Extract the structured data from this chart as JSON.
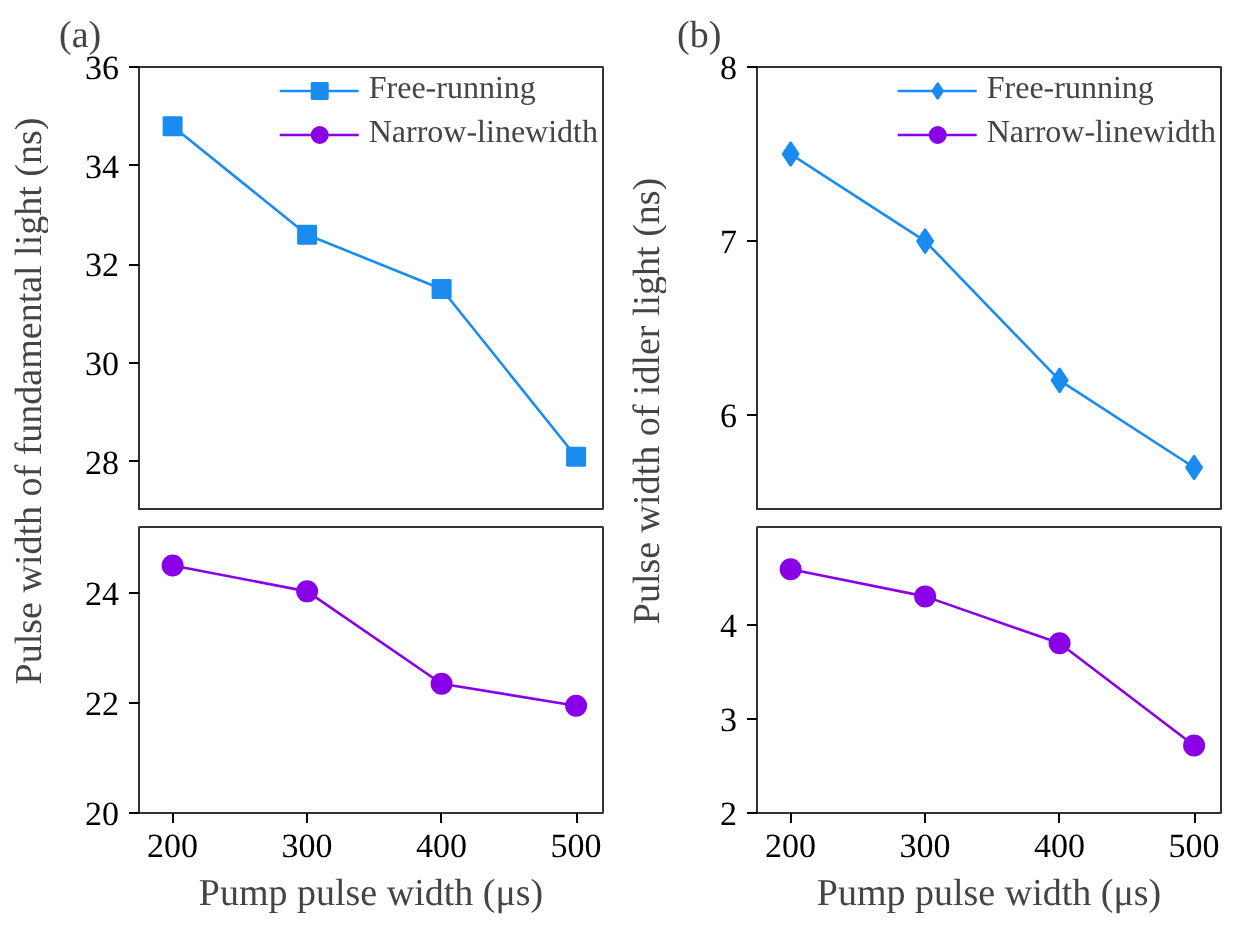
{
  "chart_data": [
    {
      "type": "line",
      "title": "(a)",
      "ylabel": "Pulse width of fundamental light (ns)",
      "x": [
        200,
        300,
        400,
        500
      ],
      "xlim": [
        175,
        520
      ],
      "xticks": [
        200,
        300,
        400,
        500
      ],
      "ylim": [
        27,
        36
      ],
      "yticks": [
        28,
        30,
        32,
        34,
        36
      ],
      "tick_labels": "y",
      "legend": "top right",
      "grid": false,
      "series": [
        {
          "name": "Free-running",
          "color": "#1a8cf0",
          "marker": "square",
          "values": [
            34.8,
            32.6,
            31.5,
            28.1
          ]
        }
      ]
    },
    {
      "type": "line",
      "xlabel": "Pump pulse width (μs)",
      "x": [
        200,
        300,
        400,
        500
      ],
      "xlim": [
        175,
        520
      ],
      "xticks": [
        200,
        300,
        400,
        500
      ],
      "ylim": [
        20,
        25.2
      ],
      "yticks": [
        20,
        22,
        24
      ],
      "grid": false,
      "series": [
        {
          "name": "Narrow-linewidth",
          "color": "#8a00e6",
          "marker": "circle",
          "values": [
            24.5,
            24.03,
            22.35,
            21.95
          ]
        }
      ]
    },
    {
      "type": "line",
      "title": "(b)",
      "ylabel": "Pulse width of idler light (ns)",
      "x": [
        200,
        300,
        400,
        500
      ],
      "xlim": [
        175,
        520
      ],
      "xticks": [
        200,
        300,
        400,
        500
      ],
      "ylim": [
        5.45,
        8
      ],
      "yticks": [
        6,
        7,
        8
      ],
      "tick_labels": "y",
      "legend": "top right",
      "grid": false,
      "series": [
        {
          "name": "Free-running",
          "color": "#1a8cf0",
          "marker": "diamond",
          "values": [
            7.5,
            7.0,
            6.2,
            5.7
          ]
        }
      ]
    },
    {
      "type": "line",
      "xlabel": "Pump pulse width (μs)",
      "x": [
        200,
        300,
        400,
        500
      ],
      "xlim": [
        175,
        520
      ],
      "xticks": [
        200,
        300,
        400,
        500
      ],
      "ylim": [
        2,
        5.05
      ],
      "yticks": [
        2,
        3,
        4
      ],
      "grid": false,
      "series": [
        {
          "name": "Narrow-linewidth",
          "color": "#8a00e6",
          "marker": "circle",
          "values": [
            4.6,
            4.31,
            3.81,
            2.72
          ]
        }
      ]
    }
  ]
}
